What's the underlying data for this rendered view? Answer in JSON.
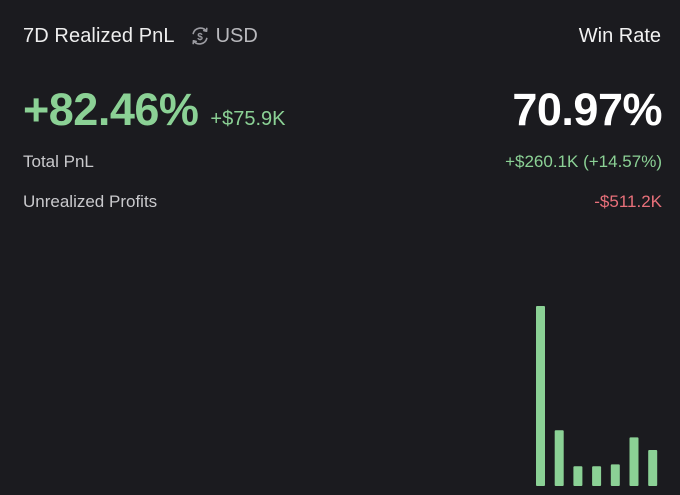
{
  "header": {
    "title": "7D Realized PnL",
    "currency_icon": "dollar-exchange-icon",
    "currency_label": "USD",
    "win_rate_label": "Win Rate"
  },
  "summary": {
    "realized_pnl_percent": "+82.46%",
    "realized_pnl_amount": "+$75.9K",
    "win_rate_value": "70.97%"
  },
  "stats": {
    "total_pnl_label": "Total PnL",
    "total_pnl_value": "+$260.1K (+14.57%)",
    "unrealized_label": "Unrealized Profits",
    "unrealized_value": "-$511.2K"
  },
  "colors": {
    "background": "#1b1b1f",
    "positive": "#8bd195",
    "negative": "#e8707a"
  },
  "chart_data": {
    "type": "bar",
    "title": "",
    "xlabel": "",
    "ylabel": "",
    "categories": [
      "1",
      "2",
      "3",
      "4",
      "5",
      "6",
      "7"
    ],
    "values": [
      100,
      31,
      11,
      11,
      12,
      27,
      20
    ],
    "ylim": [
      0,
      100
    ],
    "grid": false,
    "axes_visible": false,
    "bar_color": "#8bd195"
  }
}
